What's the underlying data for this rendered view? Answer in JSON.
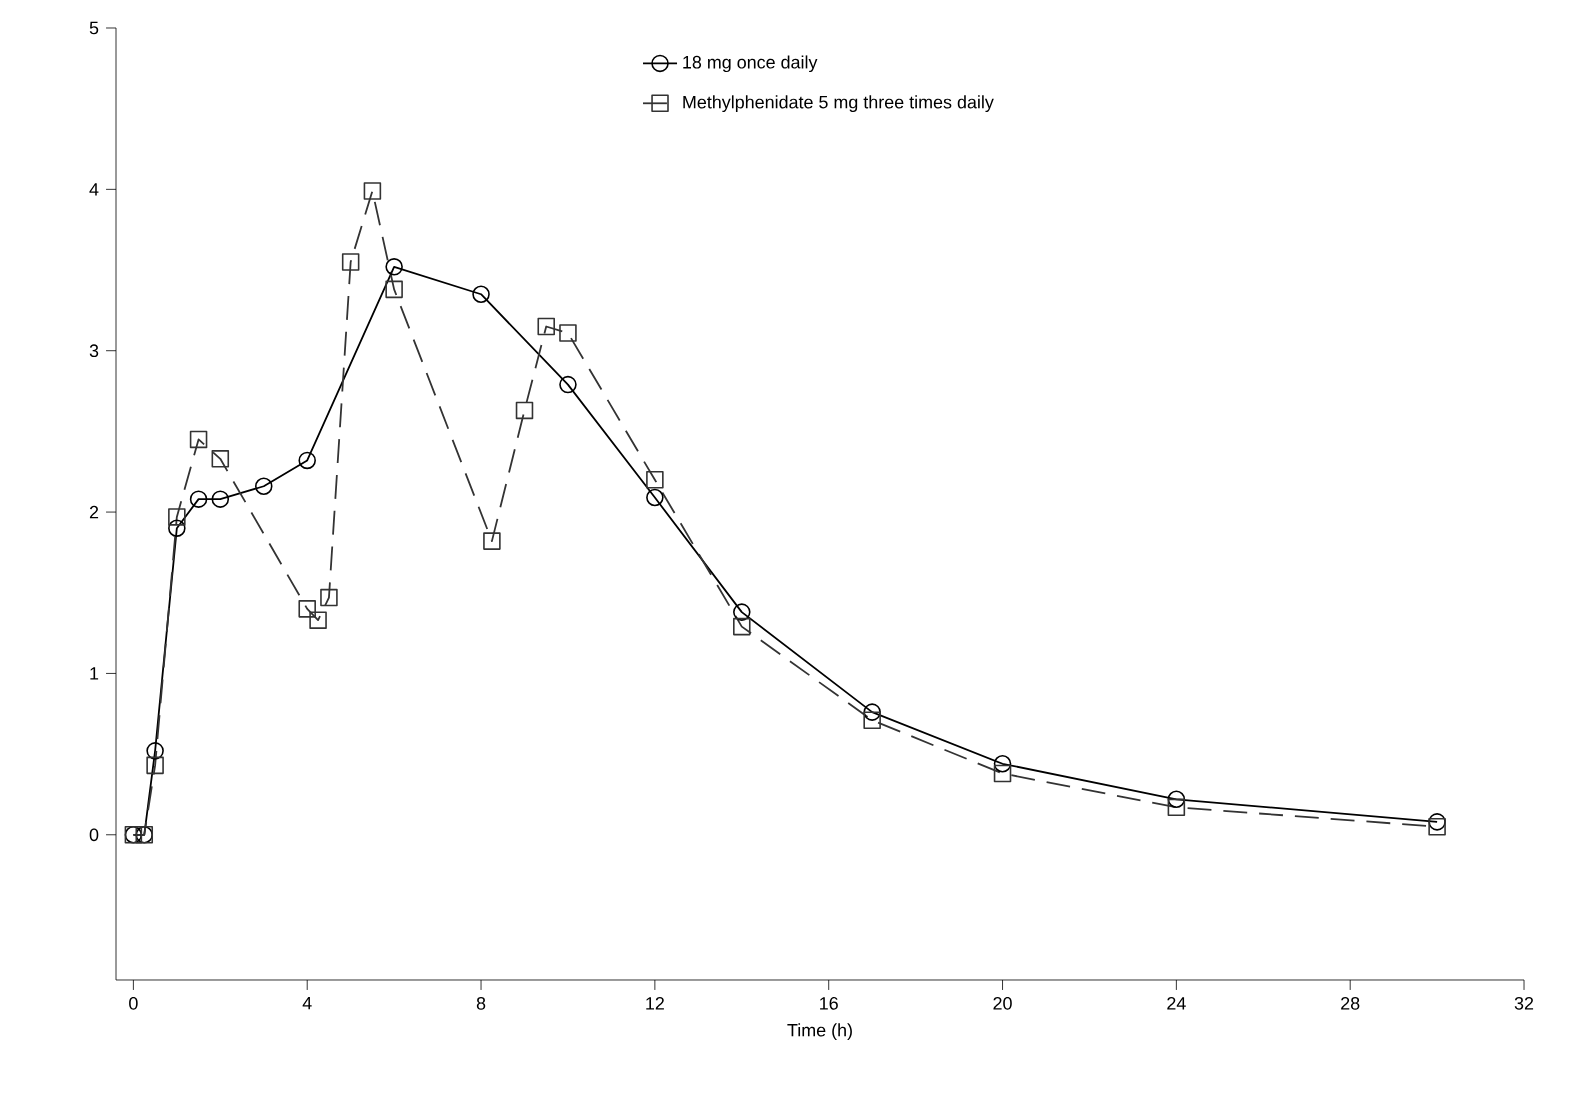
{
  "chart_data": {
    "type": "line",
    "xlabel": "Time (h)",
    "xlim": [
      -0.4,
      32
    ],
    "ylim": [
      -0.9,
      5
    ],
    "xticks": [
      0,
      4,
      8,
      12,
      16,
      20,
      24,
      28,
      32
    ],
    "yticks": [
      0,
      1,
      2,
      3,
      4,
      5
    ],
    "legend": "top",
    "grid": false,
    "series": [
      {
        "name": "18 mg once daily",
        "color": "#000000",
        "marker": "circle",
        "line_style": "solid",
        "x": [
          0,
          0.25,
          0.5,
          1,
          1.5,
          2,
          3,
          4,
          6,
          8,
          10,
          12,
          14,
          17,
          20,
          24,
          30
        ],
        "values": [
          0,
          0,
          0.52,
          1.9,
          2.08,
          2.08,
          2.16,
          2.32,
          3.52,
          3.35,
          2.79,
          2.09,
          1.38,
          0.76,
          0.44,
          0.22,
          0.08
        ]
      },
      {
        "name": "Methylphenidate 5 mg three times daily",
        "color": "#333333",
        "marker": "square",
        "line_style": "dashed",
        "x": [
          0,
          0.25,
          0.5,
          1,
          1.5,
          2,
          4,
          4.25,
          4.5,
          5,
          5.5,
          6,
          8.25,
          9,
          9.5,
          10,
          12,
          14,
          17,
          20,
          24,
          30
        ],
        "values": [
          0,
          0,
          0.43,
          1.97,
          2.45,
          2.33,
          1.4,
          1.33,
          1.47,
          3.55,
          3.99,
          3.38,
          1.82,
          2.63,
          3.15,
          3.11,
          2.2,
          1.29,
          0.71,
          0.38,
          0.17,
          0.05
        ]
      }
    ]
  }
}
